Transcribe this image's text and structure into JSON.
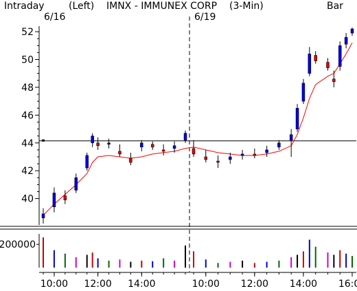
{
  "header": {
    "mode": "Intraday",
    "axis_side": "(Left)",
    "symbol_name": "IMNX - IMMUNEX CORP",
    "interval": "(3-Min)",
    "style": "Bar",
    "date_left": "6/16",
    "date_right": "6/19"
  },
  "chart_data": {
    "type": "candlestick",
    "title": "IMNX - IMMUNEX CORP (3-Min)",
    "sessions": [
      "6/16",
      "6/19"
    ],
    "x_tick_labels": [
      "10:00",
      "12:00",
      "14:00",
      "10:00",
      "12:00",
      "14:00",
      "16:00"
    ],
    "price_axis": {
      "ticks": [
        40,
        42,
        44,
        46,
        48,
        50,
        52
      ],
      "range": [
        38.1,
        52.4
      ]
    },
    "volume_axis": {
      "ticks": [
        200000
      ],
      "tick_labels": [
        "200000"
      ],
      "range": [
        0,
        290000
      ]
    },
    "reference_line": 44.15,
    "moving_average": {
      "color": "#ff0000"
    },
    "price_series": [
      {
        "t": "09:30",
        "o": 38.6,
        "h": 39.3,
        "l": 38.2,
        "c": 38.9
      },
      {
        "t": "10:00",
        "o": 39.4,
        "h": 40.8,
        "l": 39.0,
        "c": 40.4
      },
      {
        "t": "10:30",
        "o": 40.2,
        "h": 40.6,
        "l": 39.6,
        "c": 39.9
      },
      {
        "t": "11:00",
        "o": 40.6,
        "h": 41.8,
        "l": 40.4,
        "c": 41.5
      },
      {
        "t": "11:30",
        "o": 42.2,
        "h": 43.3,
        "l": 42.0,
        "c": 43.1
      },
      {
        "t": "11:45",
        "o": 44.0,
        "h": 44.7,
        "l": 43.7,
        "c": 44.5
      },
      {
        "t": "12:00",
        "o": 44.0,
        "h": 44.4,
        "l": 43.5,
        "c": 43.8
      },
      {
        "t": "12:30",
        "o": 43.9,
        "h": 44.3,
        "l": 43.6,
        "c": 44.0
      },
      {
        "t": "13:00",
        "o": 43.4,
        "h": 43.9,
        "l": 43.0,
        "c": 43.2
      },
      {
        "t": "13:30",
        "o": 42.9,
        "h": 43.3,
        "l": 42.4,
        "c": 42.6
      },
      {
        "t": "14:00",
        "o": 43.7,
        "h": 44.2,
        "l": 43.4,
        "c": 44.0
      },
      {
        "t": "14:30",
        "o": 43.9,
        "h": 44.1,
        "l": 43.5,
        "c": 43.7
      },
      {
        "t": "15:00",
        "o": 43.5,
        "h": 43.9,
        "l": 43.1,
        "c": 43.4
      },
      {
        "t": "15:30",
        "o": 43.6,
        "h": 44.1,
        "l": 43.3,
        "c": 43.8
      },
      {
        "t": "16:00",
        "o": 44.2,
        "h": 44.9,
        "l": 44.0,
        "c": 44.7
      },
      {
        "t": "09:30",
        "o": 43.6,
        "h": 44.2,
        "l": 43.0,
        "c": 43.2
      },
      {
        "t": "10:00",
        "o": 43.0,
        "h": 43.5,
        "l": 42.6,
        "c": 42.8
      },
      {
        "t": "10:30",
        "o": 42.7,
        "h": 43.1,
        "l": 42.2,
        "c": 42.6
      },
      {
        "t": "11:00",
        "o": 42.8,
        "h": 43.3,
        "l": 42.5,
        "c": 43.0
      },
      {
        "t": "11:30",
        "o": 43.1,
        "h": 43.5,
        "l": 42.8,
        "c": 43.2
      },
      {
        "t": "12:00",
        "o": 43.2,
        "h": 43.6,
        "l": 42.9,
        "c": 43.1
      },
      {
        "t": "12:30",
        "o": 43.3,
        "h": 43.8,
        "l": 43.0,
        "c": 43.5
      },
      {
        "t": "13:00",
        "o": 43.7,
        "h": 44.2,
        "l": 43.5,
        "c": 44.0
      },
      {
        "t": "13:30",
        "o": 44.2,
        "h": 45.0,
        "l": 43.0,
        "c": 44.6
      },
      {
        "t": "13:45",
        "o": 45.0,
        "h": 46.8,
        "l": 44.8,
        "c": 46.5
      },
      {
        "t": "14:00",
        "o": 47.0,
        "h": 48.6,
        "l": 46.8,
        "c": 48.3
      },
      {
        "t": "14:15",
        "o": 49.0,
        "h": 50.9,
        "l": 48.8,
        "c": 50.4
      },
      {
        "t": "14:30",
        "o": 50.3,
        "h": 50.6,
        "l": 49.7,
        "c": 49.9
      },
      {
        "t": "15:00",
        "o": 49.8,
        "h": 50.1,
        "l": 49.2,
        "c": 49.4
      },
      {
        "t": "15:15",
        "o": 48.6,
        "h": 49.2,
        "l": 48.0,
        "c": 48.4
      },
      {
        "t": "15:30",
        "o": 49.5,
        "h": 51.3,
        "l": 49.2,
        "c": 51.0
      },
      {
        "t": "15:45",
        "o": 51.1,
        "h": 51.9,
        "l": 50.8,
        "c": 51.6
      },
      {
        "t": "16:00",
        "o": 51.9,
        "h": 52.3,
        "l": 51.7,
        "c": 52.2
      }
    ],
    "volume_series": [
      260000,
      150000,
      120000,
      90000,
      110000,
      130000,
      80000,
      60000,
      70000,
      50000,
      60000,
      55000,
      80000,
      60000,
      190000,
      140000,
      70000,
      40000,
      50000,
      60000,
      40000,
      50000,
      60000,
      90000,
      110000,
      140000,
      240000,
      180000,
      130000,
      110000,
      150000,
      120000,
      100000
    ],
    "ma_series": [
      38.8,
      39.6,
      40.3,
      41.0,
      41.8,
      42.6,
      43.0,
      43.1,
      43.0,
      42.9,
      43.0,
      43.2,
      43.3,
      43.4,
      43.6,
      43.7,
      43.5,
      43.3,
      43.2,
      43.1,
      43.1,
      43.2,
      43.4,
      43.8,
      44.6,
      45.8,
      47.2,
      48.2,
      48.8,
      49.0,
      49.7,
      50.4,
      51.2
    ]
  }
}
